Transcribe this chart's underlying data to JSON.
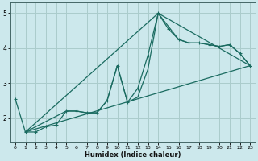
{
  "title": "",
  "xlabel": "Humidex (Indice chaleur)",
  "xlim": [
    -0.5,
    23.5
  ],
  "ylim": [
    1.3,
    5.3
  ],
  "yticks": [
    2,
    3,
    4,
    5
  ],
  "xticks": [
    0,
    1,
    2,
    3,
    4,
    5,
    6,
    7,
    8,
    9,
    10,
    11,
    12,
    13,
    14,
    15,
    16,
    17,
    18,
    19,
    20,
    21,
    22,
    23
  ],
  "bg_color": "#cce8ec",
  "grid_color": "#aacccc",
  "line_color": "#1a6b60",
  "lines": [
    {
      "x": [
        0,
        1,
        2,
        3,
        4,
        5,
        6,
        7,
        8,
        9,
        10,
        11,
        12,
        13,
        14,
        15,
        16,
        17,
        18,
        19,
        20,
        21,
        22,
        23
      ],
      "y": [
        2.55,
        1.6,
        1.6,
        1.75,
        1.8,
        2.2,
        2.2,
        2.15,
        2.15,
        2.5,
        3.5,
        2.45,
        2.85,
        3.8,
        5.0,
        4.55,
        4.25,
        4.15,
        4.15,
        4.1,
        4.05,
        4.1,
        3.85,
        3.5
      ],
      "marker": "+"
    },
    {
      "x": [
        1,
        23
      ],
      "y": [
        1.6,
        3.5
      ],
      "marker": null
    },
    {
      "x": [
        1,
        14,
        23
      ],
      "y": [
        1.6,
        5.0,
        3.5
      ],
      "marker": null
    },
    {
      "x": [
        1,
        5,
        6,
        7,
        8,
        9,
        10,
        11,
        12,
        13,
        14,
        16,
        17,
        18,
        19,
        20,
        21,
        22,
        23
      ],
      "y": [
        1.6,
        2.2,
        2.2,
        2.15,
        2.15,
        2.5,
        3.5,
        2.45,
        2.6,
        3.4,
        5.0,
        4.25,
        4.15,
        4.15,
        4.1,
        4.05,
        4.1,
        3.85,
        3.5
      ],
      "marker": null
    }
  ]
}
